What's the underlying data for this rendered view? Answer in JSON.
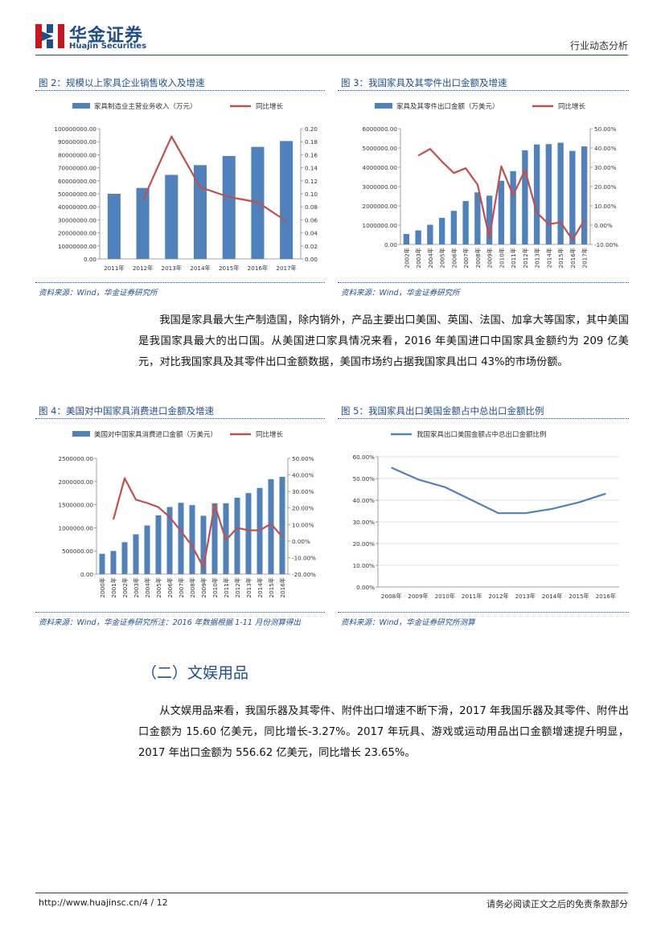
{
  "header": {
    "logo_cn": "华金证券",
    "logo_en": "Huajin Securities",
    "report_type": "行业动态分析"
  },
  "colors": {
    "accent": "#1f4e8c",
    "bar": "#4f81bd",
    "line": "#c0504d",
    "logo_red": "#c9161d"
  },
  "figures": {
    "fig2": {
      "title": "图 2：规模以上家具企业销售收入及增速",
      "source": "资料来源：Wind，华金证券研究所"
    },
    "fig3": {
      "title": "图 3：我国家具及其零件出口金额及增速",
      "source": "资料来源：Wind，华金证券研究所"
    },
    "fig4": {
      "title": "图 4：美国对中国家具消费进口金额及增速",
      "source": "资料来源：Wind，华金证券研究所注：2016 年数据根据 1-11 月份测算得出"
    },
    "fig5": {
      "title": "图 5：我国家具出口美国金额占中总出口金额比例",
      "source": "资料来源：Wind，华金证券研究所测算"
    }
  },
  "paragraph1": "我国是家具最大生产制造国，除内销外，产品主要出口美国、英国、法国、加拿大等国家，其中美国是我国家具最大的出口国。从美国进口家具情况来看，2016 年美国进口中国家具金额约为 209 亿美元，对比我国家具及其零件出口金额数据，美国市场约占据我国家具出口 43%的市场份额。",
  "section2": {
    "title": "（二）文娱用品",
    "paragraph": "从文娱用品来看，我国乐器及其零件、附件出口增速不断下滑，2017 年我国乐器及其零件、附件出口金额为 15.60 亿美元，同比增长-3.27%。2017 年玩具、游戏或运动用品出口金额增速提升明显，2017 年出口金额为 556.62 亿美元，同比增长 23.65%。"
  },
  "footer": {
    "url": "http://www.huajinsc.cn/",
    "page": "4 / 12",
    "note": "请务必阅读正文之后的免责条款部分"
  },
  "chart_data": [
    {
      "id": "fig2",
      "type": "bar+line",
      "categories": [
        "2011年",
        "2012年",
        "2013年",
        "2014年",
        "2015年",
        "2016年",
        "2017年"
      ],
      "series": [
        {
          "name": "家具制造业主营业务收入（万元）",
          "type": "bar",
          "axis": "left",
          "values": [
            50000000,
            54500000,
            64500000,
            72000000,
            79000000,
            86000000,
            90500000
          ]
        },
        {
          "name": "同比增长",
          "type": "line",
          "axis": "right",
          "values": [
            null,
            0.09,
            0.188,
            0.11,
            0.095,
            0.087,
            0.058
          ]
        }
      ],
      "y_left": {
        "min": 0,
        "max": 100000000,
        "step": 10000000,
        "ticks": [
          "0.00",
          "10000000.00",
          "20000000.00",
          "30000000.00",
          "40000000.00",
          "50000000.00",
          "60000000.00",
          "70000000.00",
          "80000000.00",
          "90000000.00",
          "100000000.00"
        ]
      },
      "y_right": {
        "min": 0,
        "max": 0.2,
        "step": 0.02,
        "ticks": [
          "0.00",
          "0.02",
          "0.04",
          "0.06",
          "0.08",
          "0.10",
          "0.12",
          "0.14",
          "0.16",
          "0.18",
          "0.20"
        ]
      },
      "legend_position": "top"
    },
    {
      "id": "fig3",
      "type": "bar+line",
      "categories": [
        "2002年",
        "2003年",
        "2004年",
        "2005年",
        "2006年",
        "2007年",
        "2008年",
        "2009年",
        "2010年",
        "2011年",
        "2012年",
        "2013年",
        "2014年",
        "2015年",
        "2016年",
        "2017年"
      ],
      "series": [
        {
          "name": "家具及其零件出口金额（万美元）",
          "type": "bar",
          "axis": "left",
          "values": [
            540000,
            730000,
            1020000,
            1380000,
            1740000,
            2250000,
            2700000,
            2530000,
            3300000,
            3800000,
            4880000,
            5180000,
            5200000,
            5270000,
            4850000,
            5080000
          ]
        },
        {
          "name": "同比增长",
          "type": "line",
          "axis": "right",
          "values": [
            null,
            36.0,
            39.5,
            33.0,
            27.0,
            29.5,
            21.0,
            -6.5,
            30.5,
            15.5,
            28.5,
            6.5,
            0.5,
            1.5,
            -7.5,
            2.5
          ]
        }
      ],
      "y_left": {
        "min": 0,
        "max": 6000000,
        "step": 1000000,
        "ticks": [
          "0.00",
          "1000000.00",
          "2000000.00",
          "3000000.00",
          "4000000.00",
          "5000000.00",
          "6000000.00"
        ]
      },
      "y_right": {
        "min": -10,
        "max": 50,
        "step": 10,
        "ticks": [
          "-10.00%",
          "0.00%",
          "10.00%",
          "20.00%",
          "30.00%",
          "40.00%",
          "50.00%"
        ]
      },
      "legend_position": "top"
    },
    {
      "id": "fig4",
      "type": "bar+line",
      "categories": [
        "2000年",
        "2001年",
        "2002年",
        "2003年",
        "2004年",
        "2005年",
        "2006年",
        "2007年",
        "2008年",
        "2009年",
        "2010年",
        "2011年",
        "2012年",
        "2013年",
        "2014年",
        "2015年",
        "2016年"
      ],
      "series": [
        {
          "name": "美国对中国家具消费进口金额（万美元）",
          "type": "bar",
          "axis": "left",
          "values": [
            440000,
            500000,
            690000,
            860000,
            1050000,
            1270000,
            1450000,
            1540000,
            1490000,
            1260000,
            1530000,
            1530000,
            1650000,
            1750000,
            1860000,
            2050000,
            2100000
          ]
        },
        {
          "name": "同比增长",
          "type": "line",
          "axis": "right",
          "values": [
            null,
            13.0,
            38.0,
            25.0,
            23.0,
            20.5,
            14.5,
            6.0,
            -3.0,
            -16.0,
            22.0,
            0.5,
            8.0,
            6.5,
            6.5,
            10.5,
            2.5
          ]
        }
      ],
      "y_left": {
        "min": 0,
        "max": 2500000,
        "step": 500000,
        "ticks": [
          "0.00",
          "500000.00",
          "1000000.00",
          "1500000.00",
          "2000000.00",
          "2500000.00"
        ]
      },
      "y_right": {
        "min": -20,
        "max": 50,
        "step": 10,
        "ticks": [
          "-20.00%",
          "-10.00%",
          "0.00%",
          "10.00%",
          "20.00%",
          "30.00%",
          "40.00%",
          "50.00%"
        ]
      },
      "legend_position": "top"
    },
    {
      "id": "fig5",
      "type": "line",
      "categories": [
        "2008年",
        "2009年",
        "2010年",
        "2011年",
        "2012年",
        "2013年",
        "2014年",
        "2015年",
        "2016年"
      ],
      "series": [
        {
          "name": "我国家具出口美国金额占中总出口金额比例",
          "type": "line",
          "axis": "left",
          "values": [
            55.0,
            49.5,
            46.0,
            40.0,
            34.0,
            34.0,
            36.0,
            39.0,
            43.0
          ]
        }
      ],
      "y_left": {
        "min": 0,
        "max": 60,
        "step": 10,
        "ticks": [
          "0.00%",
          "10.00%",
          "20.00%",
          "30.00%",
          "40.00%",
          "50.00%",
          "60.00%"
        ]
      },
      "legend_position": "top"
    }
  ]
}
